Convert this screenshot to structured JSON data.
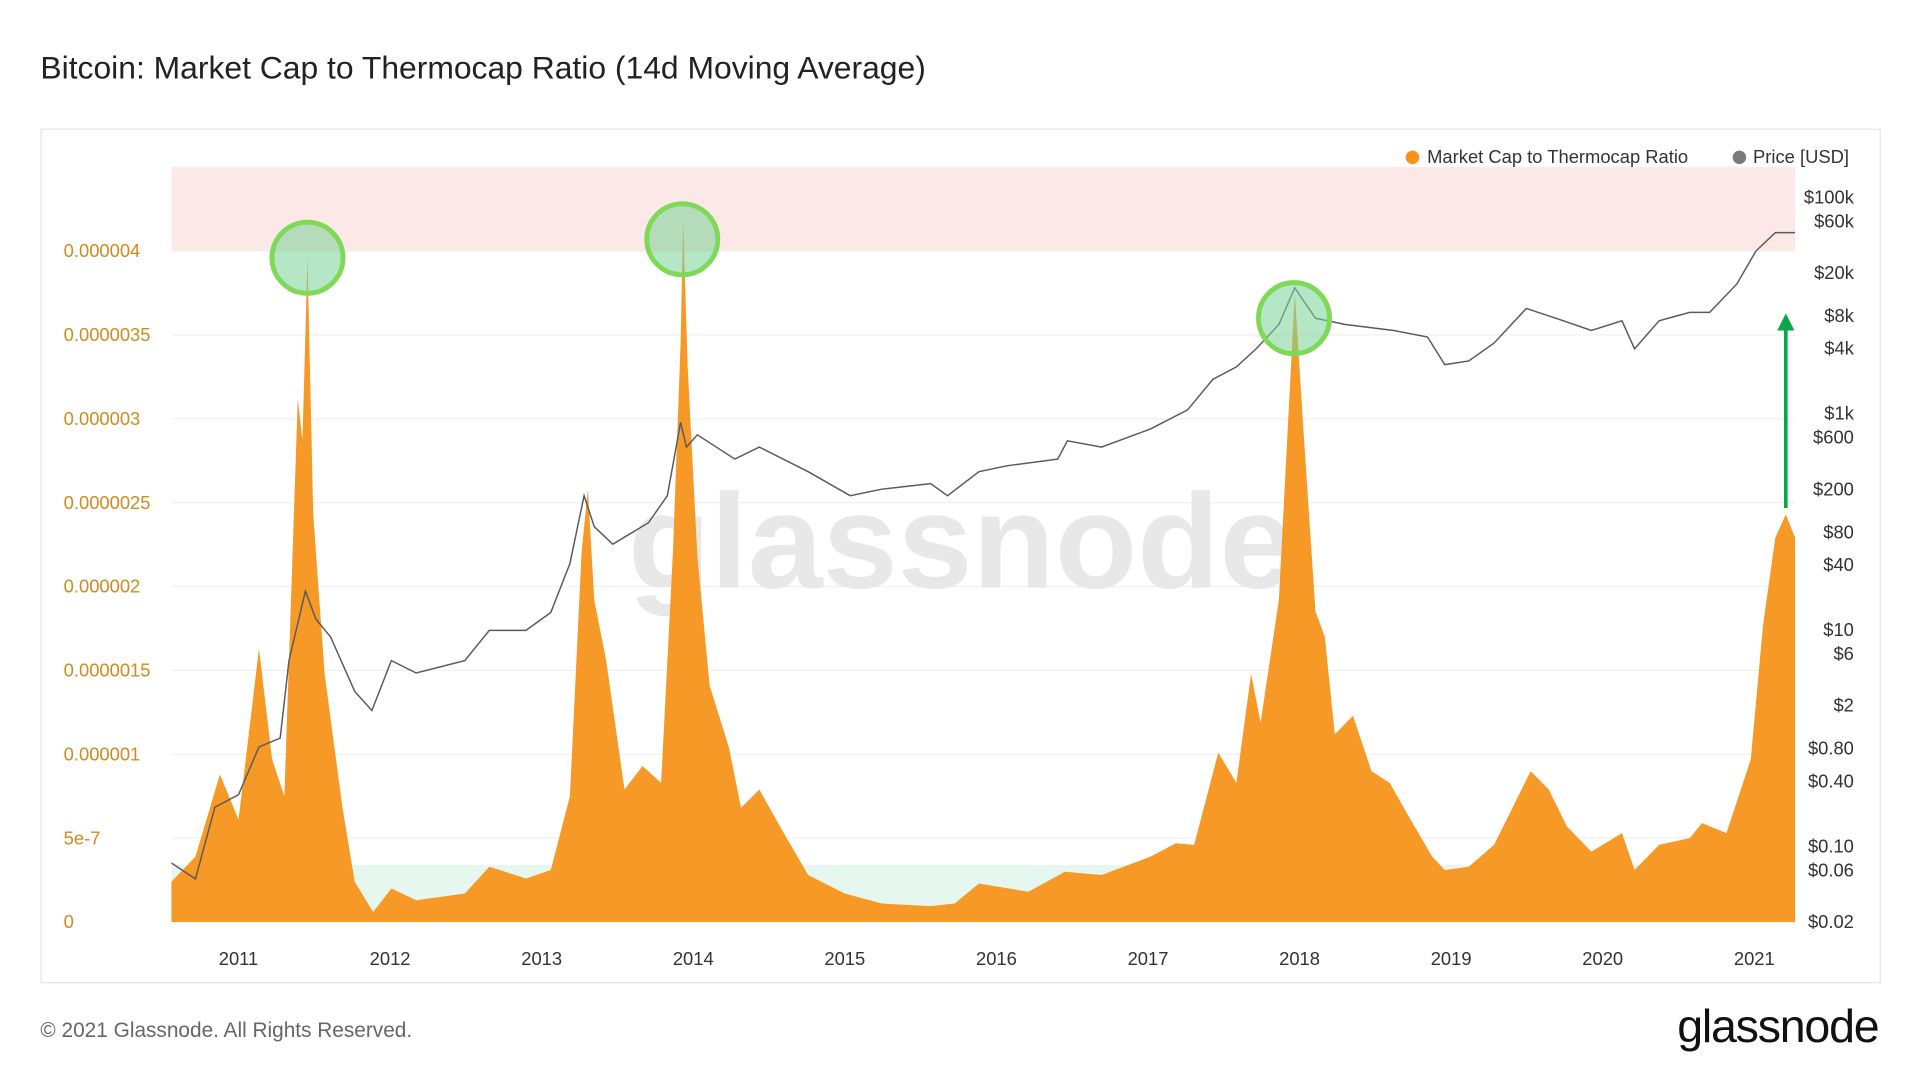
{
  "title": "Bitcoin: Market Cap to Thermocap Ratio (14d Moving Average)",
  "footer": "© 2021 Glassnode. All Rights Reserved.",
  "brand": "glassnode",
  "watermark": "glassnode",
  "colors": {
    "ratio": "#f7931a",
    "price": "#5a5a5a",
    "upper_band": "#fde8e8",
    "lower_band": "#e6f7f0",
    "circle": "#7ed957",
    "arrow": "#0aa64a",
    "left_axis": "#d08a1f"
  },
  "chart_data": {
    "type": "area",
    "title": "Bitcoin: Market Cap to Thermocap Ratio (14d Moving Average)",
    "legend_position": "top-right",
    "grid": true,
    "x_range": [
      "2010-07-22",
      "2021-04-08"
    ],
    "x_ticks": [
      "2011",
      "2012",
      "2013",
      "2014",
      "2015",
      "2016",
      "2017",
      "2018",
      "2019",
      "2020",
      "2021"
    ],
    "y_left": {
      "scale": "linear",
      "range": [
        0,
        4.5e-06
      ],
      "ticks": [
        {
          "v": 0,
          "label": "0"
        },
        {
          "v": 5e-07,
          "label": "5e-7"
        },
        {
          "v": 1e-06,
          "label": "0.000001"
        },
        {
          "v": 1.5e-06,
          "label": "0.0000015"
        },
        {
          "v": 2e-06,
          "label": "0.000002"
        },
        {
          "v": 2.5e-06,
          "label": "0.0000025"
        },
        {
          "v": 3e-06,
          "label": "0.000003"
        },
        {
          "v": 3.5e-06,
          "label": "0.0000035"
        },
        {
          "v": 4e-06,
          "label": "0.000004"
        }
      ]
    },
    "y_right": {
      "scale": "log",
      "range": [
        0.02,
        100000
      ],
      "ticks": [
        {
          "v": 100000,
          "label": "$100k"
        },
        {
          "v": 60000,
          "label": "$60k"
        },
        {
          "v": 20000,
          "label": "$20k"
        },
        {
          "v": 8000,
          "label": "$8k"
        },
        {
          "v": 4000,
          "label": "$4k"
        },
        {
          "v": 1000,
          "label": "$1k"
        },
        {
          "v": 600,
          "label": "$600"
        },
        {
          "v": 200,
          "label": "$200"
        },
        {
          "v": 80,
          "label": "$80"
        },
        {
          "v": 40,
          "label": "$40"
        },
        {
          "v": 10,
          "label": "$10"
        },
        {
          "v": 6,
          "label": "$6"
        },
        {
          "v": 2,
          "label": "$2"
        },
        {
          "v": 0.8,
          "label": "$0.80"
        },
        {
          "v": 0.4,
          "label": "$0.40"
        },
        {
          "v": 0.1,
          "label": "$0.10"
        },
        {
          "v": 0.06,
          "label": "$0.06"
        },
        {
          "v": 0.02,
          "label": "$0.02"
        }
      ]
    },
    "bands": [
      {
        "axis": "left",
        "from": 4e-06,
        "to": 4.5e-06,
        "color": "#fde8e8"
      },
      {
        "axis": "left",
        "from": 0,
        "to": 3.4e-07,
        "color": "#e6f7f0"
      }
    ],
    "series": [
      {
        "name": "Market Cap to Thermocap Ratio",
        "axis": "left",
        "kind": "area",
        "points": [
          [
            "2010-07-22",
            2.4e-07
          ],
          [
            "2010-09-19",
            3.9e-07
          ],
          [
            "2010-11-17",
            8.8e-07
          ],
          [
            "2011-01-01",
            6.1e-07
          ],
          [
            "2011-02-20",
            1.63e-06
          ],
          [
            "2011-03-21",
            9.7e-07
          ],
          [
            "2011-04-20",
            7.5e-07
          ],
          [
            "2011-05-22",
            3.12e-06
          ],
          [
            "2011-06-03",
            2.87e-06
          ],
          [
            "2011-06-15",
            3.96e-06
          ],
          [
            "2011-06-29",
            2.43e-06
          ],
          [
            "2011-07-26",
            1.48e-06
          ],
          [
            "2011-09-08",
            6.8e-07
          ],
          [
            "2011-10-07",
            2.4e-07
          ],
          [
            "2011-11-21",
            6e-08
          ],
          [
            "2012-01-04",
            2e-07
          ],
          [
            "2012-03-03",
            1.3e-07
          ],
          [
            "2012-06-29",
            1.7e-07
          ],
          [
            "2012-08-27",
            3.3e-07
          ],
          [
            "2012-11-24",
            2.6e-07
          ],
          [
            "2013-01-23",
            3.1e-07
          ],
          [
            "2013-03-08",
            7.5e-07
          ],
          [
            "2013-04-06",
            2.21e-06
          ],
          [
            "2013-04-21",
            2.58e-06
          ],
          [
            "2013-05-06",
            1.92e-06
          ],
          [
            "2013-06-04",
            1.56e-06
          ],
          [
            "2013-07-18",
            7.9e-07
          ],
          [
            "2013-08-31",
            9.3e-07
          ],
          [
            "2013-10-15",
            8.3e-07
          ],
          [
            "2013-11-13",
            2.21e-06
          ],
          [
            "2013-12-01",
            3.45e-06
          ],
          [
            "2013-12-07",
            4.18e-06
          ],
          [
            "2013-12-18",
            3.31e-06
          ],
          [
            "2014-01-11",
            2.18e-06
          ],
          [
            "2014-02-10",
            1.41e-06
          ],
          [
            "2014-03-26",
            1.04e-06
          ],
          [
            "2014-04-25",
            6.8e-07
          ],
          [
            "2014-06-08",
            7.9e-07
          ],
          [
            "2014-08-06",
            5.3e-07
          ],
          [
            "2014-10-04",
            2.8e-07
          ],
          [
            "2015-01-01",
            1.7e-07
          ],
          [
            "2015-03-29",
            1.1e-07
          ],
          [
            "2015-07-25",
            9.5e-08
          ],
          [
            "2015-09-22",
            1.1e-07
          ],
          [
            "2015-11-20",
            2.3e-07
          ],
          [
            "2016-03-17",
            1.8e-07
          ],
          [
            "2016-06-14",
            3e-07
          ],
          [
            "2016-09-11",
            2.8e-07
          ],
          [
            "2017-01-07",
            3.9e-07
          ],
          [
            "2017-03-07",
            4.7e-07
          ],
          [
            "2017-04-21",
            4.6e-07
          ],
          [
            "2017-06-18",
            1.01e-06
          ],
          [
            "2017-08-01",
            8.3e-07
          ],
          [
            "2017-09-06",
            1.48e-06
          ],
          [
            "2017-09-29",
            1.19e-06
          ],
          [
            "2017-11-12",
            1.92e-06
          ],
          [
            "2017-12-20",
            3.75e-06
          ],
          [
            "2018-01-10",
            2.94e-06
          ],
          [
            "2018-02-09",
            1.85e-06
          ],
          [
            "2018-03-01",
            1.7e-06
          ],
          [
            "2018-03-25",
            1.12e-06
          ],
          [
            "2018-05-08",
            1.23e-06
          ],
          [
            "2018-06-22",
            9e-07
          ],
          [
            "2018-08-05",
            8.3e-07
          ],
          [
            "2018-09-18",
            6.4e-07
          ],
          [
            "2018-11-16",
            3.9e-07
          ],
          [
            "2018-12-16",
            3.1e-07
          ],
          [
            "2019-02-13",
            3.3e-07
          ],
          [
            "2019-04-13",
            4.6e-07
          ],
          [
            "2019-05-27",
            6.8e-07
          ],
          [
            "2019-07-10",
            9e-07
          ],
          [
            "2019-08-23",
            7.9e-07
          ],
          [
            "2019-10-06",
            5.7e-07
          ],
          [
            "2019-12-04",
            4.2e-07
          ],
          [
            "2020-02-17",
            5.3e-07
          ],
          [
            "2020-03-17",
            3.1e-07
          ],
          [
            "2020-05-15",
            4.6e-07
          ],
          [
            "2020-07-28",
            5e-07
          ],
          [
            "2020-08-27",
            5.9e-07
          ],
          [
            "2020-10-25",
            5.3e-07
          ],
          [
            "2020-12-23",
            9.7e-07
          ],
          [
            "2021-01-22",
            1.77e-06
          ],
          [
            "2021-02-21",
            2.29e-06
          ],
          [
            "2021-03-16",
            2.43e-06
          ],
          [
            "2021-04-08",
            2.29e-06
          ]
        ]
      },
      {
        "name": "Price [USD]",
        "axis": "right",
        "kind": "line",
        "points": [
          [
            "2010-07-22",
            0.07
          ],
          [
            "2010-09-19",
            0.05
          ],
          [
            "2010-11-05",
            0.23
          ],
          [
            "2011-01-01",
            0.3
          ],
          [
            "2011-02-20",
            0.83
          ],
          [
            "2011-04-10",
            1.0
          ],
          [
            "2011-05-01",
            5.2
          ],
          [
            "2011-06-10",
            22.8
          ],
          [
            "2011-07-05",
            12.6
          ],
          [
            "2011-08-10",
            8.6
          ],
          [
            "2011-10-07",
            2.7
          ],
          [
            "2011-11-18",
            1.8
          ],
          [
            "2012-01-04",
            5.2
          ],
          [
            "2012-03-03",
            4.0
          ],
          [
            "2012-06-29",
            5.2
          ],
          [
            "2012-08-27",
            9.9
          ],
          [
            "2012-11-24",
            9.9
          ],
          [
            "2013-01-23",
            14.5
          ],
          [
            "2013-03-08",
            41
          ],
          [
            "2013-04-12",
            174
          ],
          [
            "2013-05-06",
            90
          ],
          [
            "2013-06-20",
            62
          ],
          [
            "2013-09-15",
            98
          ],
          [
            "2013-10-30",
            174
          ],
          [
            "2013-12-01",
            830
          ],
          [
            "2013-12-15",
            490
          ],
          [
            "2014-01-11",
            635
          ],
          [
            "2014-04-10",
            380
          ],
          [
            "2014-06-08",
            490
          ],
          [
            "2014-10-04",
            290
          ],
          [
            "2015-01-14",
            174
          ],
          [
            "2015-03-29",
            200
          ],
          [
            "2015-07-25",
            225
          ],
          [
            "2015-09-05",
            174
          ],
          [
            "2015-11-20",
            290
          ],
          [
            "2016-01-28",
            330
          ],
          [
            "2016-05-27",
            380
          ],
          [
            "2016-06-20",
            560
          ],
          [
            "2016-09-11",
            490
          ],
          [
            "2017-01-07",
            720
          ],
          [
            "2017-04-05",
            1080
          ],
          [
            "2017-06-05",
            2070
          ],
          [
            "2017-08-01",
            2700
          ],
          [
            "2017-09-18",
            3960
          ],
          [
            "2017-11-12",
            6660
          ],
          [
            "2017-12-20",
            14500
          ],
          [
            "2018-02-09",
            7600
          ],
          [
            "2018-04-20",
            6660
          ],
          [
            "2018-08-15",
            5850
          ],
          [
            "2018-11-05",
            5100
          ],
          [
            "2018-12-16",
            2830
          ],
          [
            "2019-02-13",
            3060
          ],
          [
            "2019-04-13",
            4480
          ],
          [
            "2019-06-30",
            9350
          ],
          [
            "2019-09-28",
            7200
          ],
          [
            "2019-12-04",
            5850
          ],
          [
            "2020-02-17",
            7200
          ],
          [
            "2020-03-17",
            3960
          ],
          [
            "2020-05-15",
            7200
          ],
          [
            "2020-07-28",
            8600
          ],
          [
            "2020-09-15",
            8600
          ],
          [
            "2020-11-20",
            15800
          ],
          [
            "2021-01-05",
            31800
          ],
          [
            "2021-02-21",
            47000
          ],
          [
            "2021-04-08",
            47000
          ]
        ]
      }
    ],
    "annotations": {
      "circled_peaks": [
        [
          "2011-06-15",
          3.96e-06
        ],
        [
          "2013-12-05",
          4.07e-06
        ],
        [
          "2017-12-18",
          3.6e-06
        ]
      ],
      "arrow": {
        "date": "2021-03-16",
        "from_price": 134,
        "to_price": 8000
      }
    }
  },
  "legend": [
    {
      "label": "Market Cap to Thermocap Ratio",
      "color": "#f7931a"
    },
    {
      "label": "Price [USD]",
      "color": "#7a7a7a"
    }
  ]
}
